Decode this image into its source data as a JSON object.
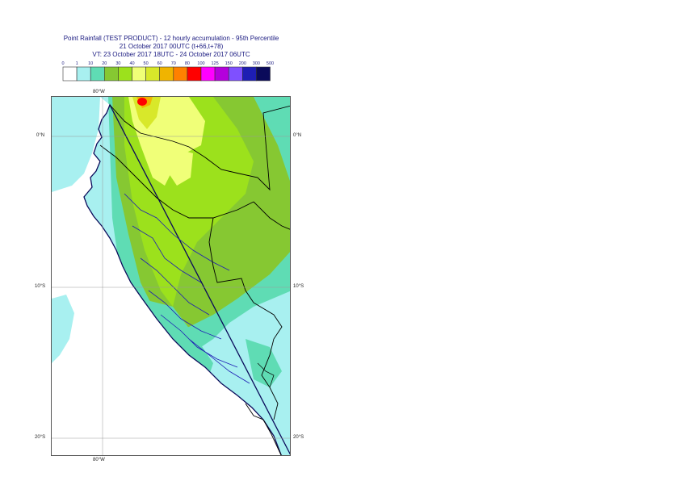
{
  "title": {
    "line1": "Point Rainfall (TEST PRODUCT) - 12 hourly accumulation - 95th Percentile",
    "line2": "21 October 2017 00UTC (t+66,t+78)",
    "line3": "VT: 23 October 2017 18UTC - 24 October 2017 06UTC"
  },
  "legend": {
    "thresholds": [
      "0",
      "1",
      "10",
      "20",
      "30",
      "40",
      "50",
      "60",
      "70",
      "80",
      "100",
      "125",
      "150",
      "200",
      "300",
      "500"
    ],
    "colors": [
      "#ffffff",
      "#a8f0f0",
      "#5fdcb4",
      "#86c832",
      "#9ce11c",
      "#f0ff78",
      "#d8e82a",
      "#f0b400",
      "#ff8000",
      "#ff0000",
      "#ff00ff",
      "#b400dc",
      "#7f50ff",
      "#1e1eb4",
      "#0a0a5a"
    ]
  },
  "map": {
    "lat_labels": [
      "0°N",
      "10°S",
      "20°S"
    ],
    "lon_labels": [
      "80°W",
      "80°W"
    ],
    "colors": {
      "ocean": "#ffffff",
      "country_border": "#000000",
      "region_border": "#1e1eb4",
      "coast": "#0a0a5a",
      "gridline": "#999999"
    }
  }
}
